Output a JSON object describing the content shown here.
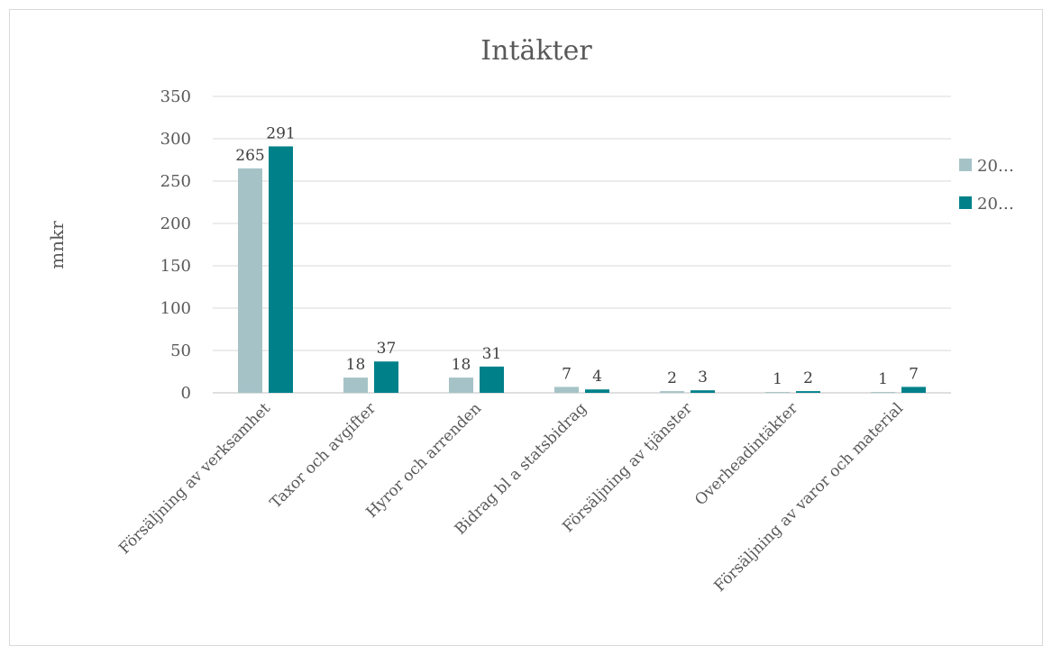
{
  "chart_data": {
    "type": "bar",
    "title": "Intäkter",
    "ylabel": "mnkr",
    "xlabel": "",
    "ylim": [
      0,
      350
    ],
    "yticks": [
      0,
      50,
      100,
      150,
      200,
      250,
      300,
      350
    ],
    "grid": true,
    "legend_position": "right",
    "categories": [
      "Försäljning av verksamhet",
      "Taxor och avgifter",
      "Hyror och arrenden",
      "Bidrag bl a statsbidrag",
      "Försäljning av tjänster",
      "Overheadintäkter",
      "Försäljning av varor och material"
    ],
    "series": [
      {
        "name": "20…",
        "color": "#a5c3c7",
        "values": [
          265,
          18,
          18,
          7,
          2,
          1,
          1
        ]
      },
      {
        "name": "20…",
        "color": "#00818a",
        "values": [
          291,
          37,
          31,
          4,
          3,
          2,
          7
        ]
      }
    ]
  }
}
